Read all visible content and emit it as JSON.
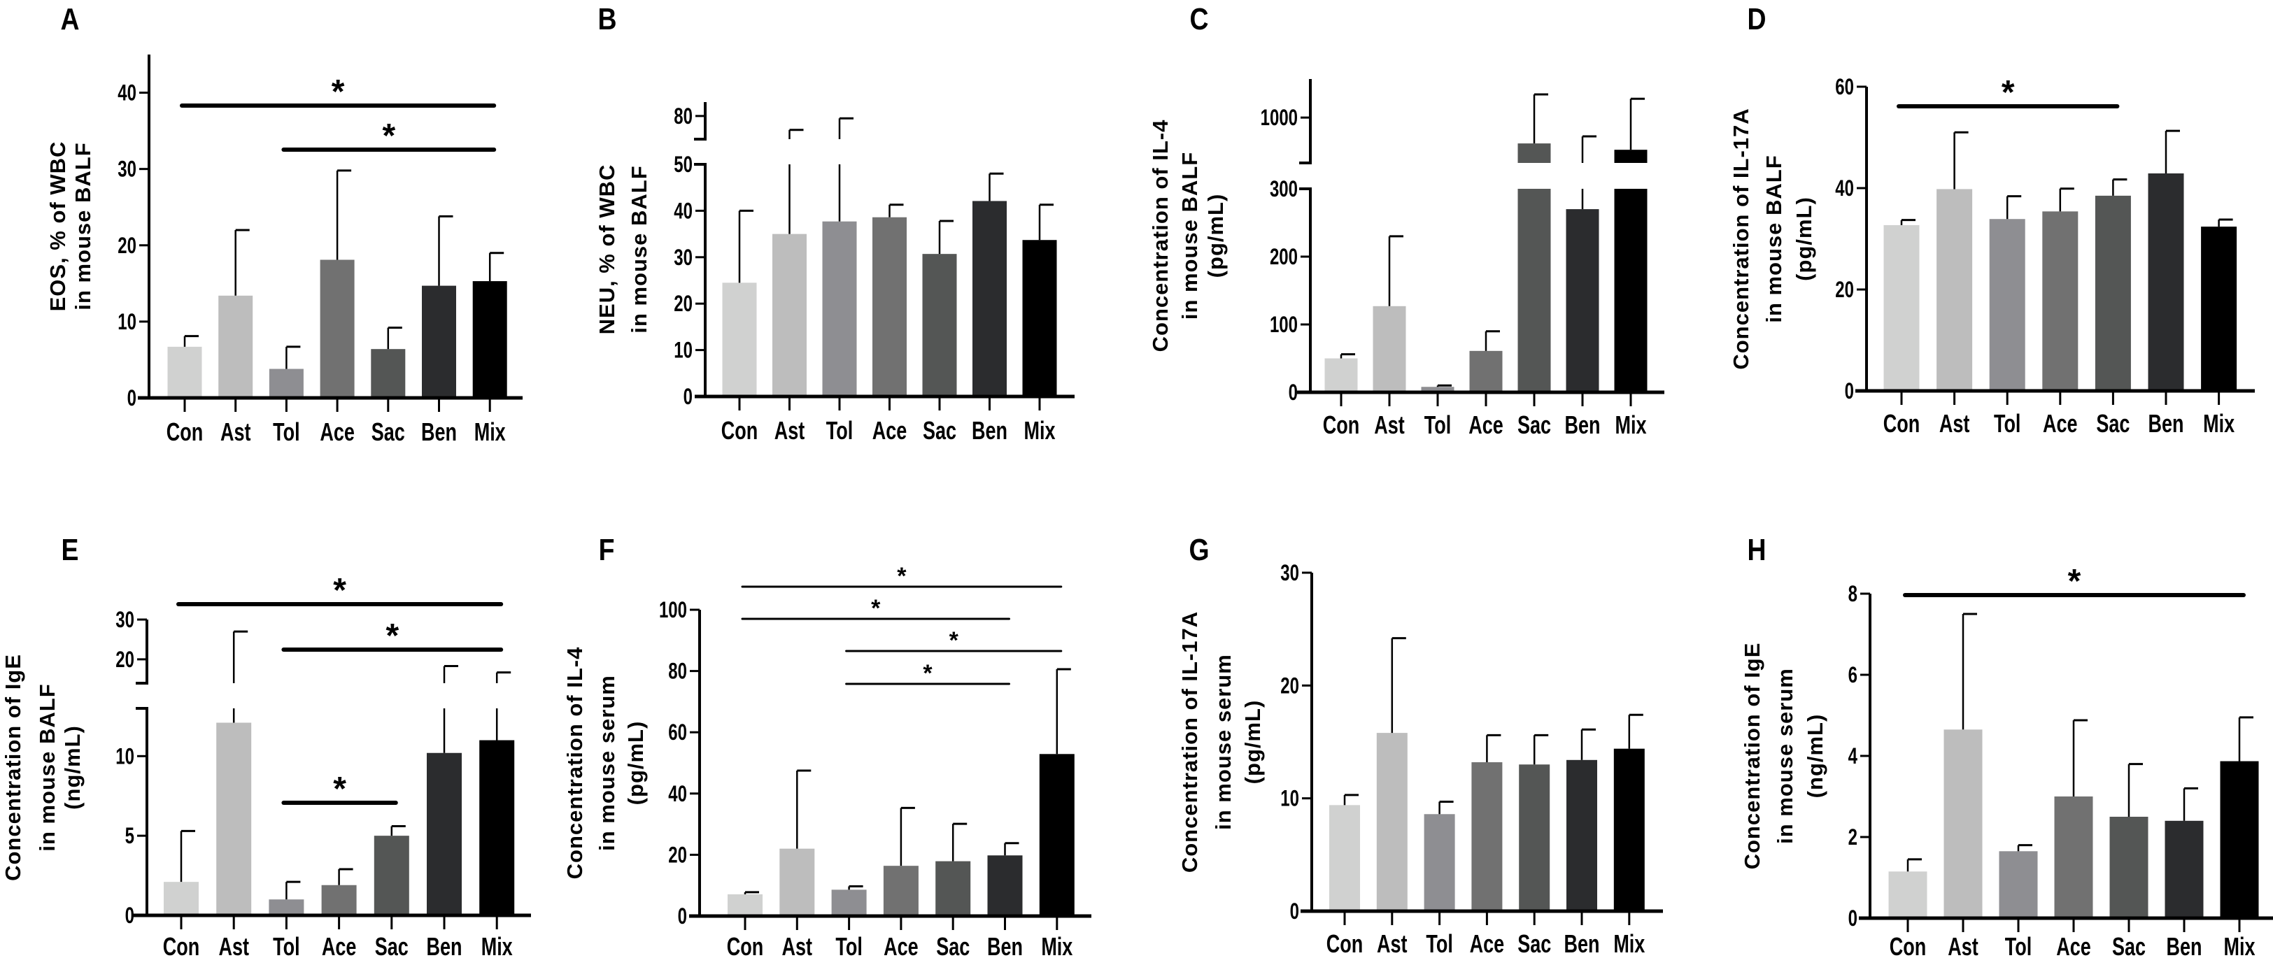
{
  "colors": [
    "#d0d1d0",
    "#bdbdbd",
    "#8e8e92",
    "#717171",
    "#545655",
    "#2b2c2e",
    "#000000"
  ],
  "chart_data": [
    {
      "panel": "A",
      "type": "bar",
      "categories": [
        "Con",
        "Ast",
        "Tol",
        "Ace",
        "Sac",
        "Ben",
        "Mix"
      ],
      "values": [
        6.7,
        13.4,
        3.8,
        18.1,
        6.4,
        14.7,
        15.3
      ],
      "error_upper": [
        8.1,
        22.0,
        6.7,
        29.8,
        9.2,
        23.8,
        19.0
      ],
      "ylabel": [
        "EOS, % of WBC",
        "in mouse BALF"
      ],
      "yticks": [
        0,
        10,
        20,
        30,
        40
      ],
      "ylim": [
        0,
        45
      ],
      "significance": [
        {
          "from": "Con",
          "to": "Mix",
          "label": "*"
        },
        {
          "from": "Tol",
          "to": "Mix",
          "label": "*"
        }
      ]
    },
    {
      "panel": "B",
      "type": "bar",
      "categories": [
        "Con",
        "Ast",
        "Tol",
        "Ace",
        "Sac",
        "Ben",
        "Mix"
      ],
      "values": [
        24.5,
        35.0,
        37.7,
        38.6,
        30.7,
        42.1,
        33.7
      ],
      "error_upper": [
        40.0,
        77.0,
        79.5,
        41.3,
        37.8,
        48.0,
        41.3
      ],
      "ylabel": [
        "NEU, % of WBC",
        "in mouse BALF"
      ],
      "yticks": [
        0,
        10,
        20,
        30,
        40,
        50,
        80
      ],
      "ylim": [
        0,
        83
      ],
      "axis_break": {
        "lower_max": 50,
        "upper_min": 75,
        "upper_max": 83
      },
      "significance": []
    },
    {
      "panel": "C",
      "type": "bar",
      "categories": [
        "Con",
        "Ast",
        "Tol",
        "Ace",
        "Sac",
        "Ben",
        "Mix"
      ],
      "values": [
        50,
        127,
        8,
        61,
        886,
        270,
        858
      ],
      "error_upper": [
        56,
        230,
        10,
        90,
        1102,
        917,
        1083
      ],
      "ylabel": [
        "Concentration of IL-4",
        "in mouse BALF",
        "(pg/mL)"
      ],
      "yticks": [
        0,
        100,
        200,
        300,
        1000
      ],
      "ylim": [
        0,
        1170
      ],
      "axis_break": {
        "lower_max": 300,
        "upper_min": 800,
        "upper_max": 1170
      },
      "significance": []
    },
    {
      "panel": "D",
      "type": "bar",
      "categories": [
        "Con",
        "Ast",
        "Tol",
        "Ace",
        "Sac",
        "Ben",
        "Mix"
      ],
      "values": [
        32.7,
        39.8,
        33.9,
        35.4,
        38.5,
        42.9,
        32.4
      ],
      "error_upper": [
        33.7,
        51.0,
        38.4,
        39.9,
        41.7,
        51.3,
        33.8
      ],
      "ylabel": [
        "Concentration of IL-17A",
        "in mouse BALF",
        "(pg/mL)"
      ],
      "yticks": [
        0,
        20,
        40,
        60
      ],
      "ylim": [
        0,
        60
      ],
      "significance": [
        {
          "from": "Con",
          "to": "Sac",
          "label": "*"
        }
      ]
    },
    {
      "panel": "E",
      "type": "bar",
      "categories": [
        "Con",
        "Ast",
        "Tol",
        "Ace",
        "Sac",
        "Ben",
        "Mix"
      ],
      "values": [
        2.1,
        12.1,
        1.0,
        1.9,
        5.0,
        10.2,
        11.0
      ],
      "error_upper": [
        5.3,
        27.0,
        2.1,
        2.9,
        5.6,
        18.3,
        16.7
      ],
      "ylabel": [
        "Concentration of IgE",
        "in mouse BALF",
        "(ng/mL)"
      ],
      "yticks": [
        0,
        5,
        10,
        20,
        30
      ],
      "ylim": [
        0,
        30
      ],
      "axis_break": {
        "lower_max": 13,
        "upper_min": 14,
        "upper_max": 30
      },
      "significance": [
        {
          "from": "Con",
          "to": "Mix",
          "label": "*"
        },
        {
          "from": "Tol",
          "to": "Mix",
          "label": "*"
        },
        {
          "from": "Tol",
          "to": "Sac",
          "label": "*"
        }
      ]
    },
    {
      "panel": "F",
      "type": "bar",
      "categories": [
        "Con",
        "Ast",
        "Tol",
        "Ace",
        "Sac",
        "Ben",
        "Mix"
      ],
      "values": [
        7.1,
        22.0,
        8.6,
        16.4,
        17.9,
        19.8,
        52.9
      ],
      "error_upper": [
        7.8,
        47.5,
        9.7,
        35.3,
        30.1,
        23.8,
        80.6
      ],
      "ylabel": [
        "Concentration of IL-4",
        "in mouse serum",
        "(pg/mL)"
      ],
      "yticks": [
        0,
        20,
        40,
        60,
        80,
        100
      ],
      "ylim": [
        0,
        100
      ],
      "significance": [
        {
          "from": "Con",
          "to": "Mix",
          "label": "*"
        },
        {
          "from": "Con",
          "to": "Ben",
          "label": "*"
        },
        {
          "from": "Tol",
          "to": "Mix",
          "label": "*"
        },
        {
          "from": "Tol",
          "to": "Ben",
          "label": "*"
        }
      ]
    },
    {
      "panel": "G",
      "type": "bar",
      "categories": [
        "Con",
        "Ast",
        "Tol",
        "Ace",
        "Sac",
        "Ben",
        "Mix"
      ],
      "values": [
        9.4,
        15.8,
        8.6,
        13.2,
        13.0,
        13.4,
        14.4
      ],
      "error_upper": [
        10.3,
        24.2,
        9.7,
        15.6,
        15.6,
        16.1,
        17.4
      ],
      "ylabel": [
        "Concentration of IL-17A",
        "in mouse serum",
        "(pg/mL)"
      ],
      "yticks": [
        0,
        10,
        20,
        30
      ],
      "ylim": [
        0,
        30
      ],
      "significance": []
    },
    {
      "panel": "H",
      "type": "bar",
      "categories": [
        "Con",
        "Ast",
        "Tol",
        "Ace",
        "Sac",
        "Ben",
        "Mix"
      ],
      "values": [
        1.15,
        4.65,
        1.65,
        3.0,
        2.5,
        2.4,
        3.87
      ],
      "error_upper": [
        1.45,
        7.5,
        1.8,
        4.88,
        3.8,
        3.2,
        4.95
      ],
      "ylabel": [
        "Concentration of IgE",
        "in mouse serum",
        "(ng/mL)"
      ],
      "yticks": [
        0,
        2,
        4,
        6,
        8
      ],
      "ylim": [
        0,
        8
      ],
      "significance": [
        {
          "from": "Con",
          "to": "Mix",
          "label": "*"
        }
      ]
    }
  ]
}
